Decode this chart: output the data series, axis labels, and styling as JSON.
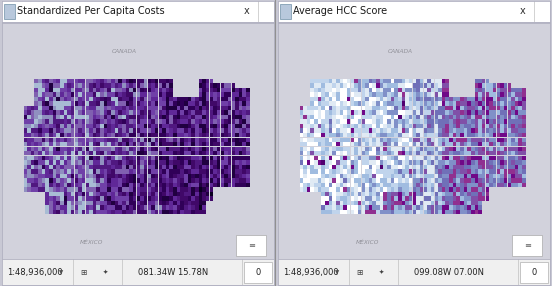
{
  "left_panel": {
    "title": "Standardized Per Capita Costs",
    "coord_text": "081.34W 15.78N",
    "scale_text": "1:48,936,000"
  },
  "right_panel": {
    "title": "Average HCC Score",
    "coord_text": "099.08W 07.00N",
    "scale_text": "1:48,936,000"
  },
  "bg_color": "#c8c8d4",
  "map_surround_color": "#d8d8e0",
  "toolbar_bg": "#f0f0f0",
  "title_bar_bg": "#ffffff",
  "border_color": "#b0b0c0",
  "title_fontsize": 7.0,
  "toolbar_fontsize": 6.0,
  "left_colors": [
    "#a8bcd4",
    "#9090c0",
    "#8060b0",
    "#7040a8",
    "#602898",
    "#501880",
    "#400868",
    "#300058",
    "#200040",
    "#0a0020"
  ],
  "right_colors": [
    "#ffffff",
    "#e0eaf4",
    "#c0d4ec",
    "#a0bce0",
    "#8090c8",
    "#7070b8",
    "#8050a8",
    "#903090",
    "#700888",
    "#500070"
  ]
}
